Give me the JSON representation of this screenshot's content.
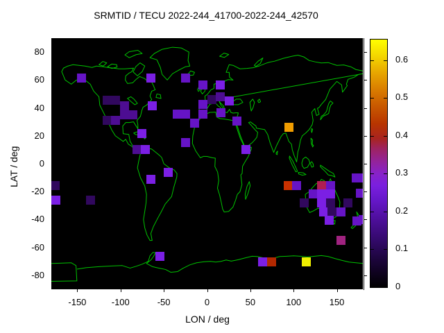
{
  "title": "SRMTID / TECU 2022-244_41700-2022-244_42570",
  "axes": {
    "x_label": "LON / deg",
    "y_label": "LAT / deg",
    "x_ticks": [
      "-150",
      "-100",
      "-50",
      "0",
      "50",
      "100",
      "150"
    ],
    "x_tick_values": [
      -150,
      -100,
      -50,
      0,
      50,
      100,
      150
    ],
    "y_ticks": [
      "80",
      "60",
      "40",
      "20",
      "0",
      "-20",
      "-40",
      "-60",
      "-80"
    ],
    "y_tick_values": [
      80,
      60,
      40,
      20,
      0,
      -20,
      -40,
      -60,
      -80
    ],
    "x_range": [
      -180,
      180
    ],
    "y_range": [
      -90,
      90
    ]
  },
  "colorbar": {
    "tick_labels": [
      "0",
      "0.1",
      "0.2",
      "0.3",
      "0.4",
      "0.5",
      "0.6"
    ],
    "tick_values": [
      0,
      0.1,
      0.2,
      0.3,
      0.4,
      0.5,
      0.6
    ],
    "max_value": 0.655,
    "gradient": [
      [
        0,
        "#000000"
      ],
      [
        6,
        "#0f0220"
      ],
      [
        12,
        "#1e0540"
      ],
      [
        20,
        "#360a70"
      ],
      [
        28,
        "#4f0f9e"
      ],
      [
        35,
        "#6517c8"
      ],
      [
        41,
        "#7a1fde"
      ],
      [
        46,
        "#8822c8"
      ],
      [
        51,
        "#942398"
      ],
      [
        56,
        "#9e2360"
      ],
      [
        60,
        "#a82420"
      ],
      [
        66,
        "#b83500"
      ],
      [
        73,
        "#c85800"
      ],
      [
        80,
        "#da7e00"
      ],
      [
        87,
        "#e8a900"
      ],
      [
        93,
        "#f3d400"
      ],
      [
        100,
        "#ffff00"
      ]
    ]
  },
  "palette": {
    "darkPurple": "#31085e",
    "purple": "#4d0d92",
    "violet": "#6614c6",
    "brightViolet": "#7b1fe4",
    "magenta": "#a02380",
    "crimson": "#b01e52",
    "red": "#c93100",
    "brick": "#b22800",
    "orange": "#f09d00",
    "yellow": "#efef00"
  },
  "colors": {
    "background": "#ffffff",
    "plot_background": "#000000",
    "coastline": "#00c400",
    "text": "#000000"
  },
  "chart_data": {
    "type": "heatmap",
    "title": "SRMTID / TECU 2022-244_41700-2022-244_42570",
    "xlabel": "LON / deg",
    "ylabel": "LAT / deg",
    "x_range": [
      -180,
      180
    ],
    "y_range": [
      -90,
      90
    ],
    "colorbar_range": [
      0,
      0.655
    ],
    "grid": false,
    "legend_position": "right-colorbar",
    "cell_size_px": 13,
    "cells": [
      [
        -145,
        61.5,
        0.19,
        "violet"
      ],
      [
        -65,
        61.5,
        0.24,
        "brightViolet"
      ],
      [
        -25,
        61.5,
        0.19,
        "violet"
      ],
      [
        -5,
        56.2,
        0.19,
        "violet"
      ],
      [
        15.5,
        56.2,
        0.24,
        "brightViolet"
      ],
      [
        -115.5,
        45.7,
        0.1,
        "darkPurple"
      ],
      [
        -105.5,
        45.7,
        0.1,
        "darkPurple"
      ],
      [
        -95.5,
        41.5,
        0.14,
        "purple"
      ],
      [
        -63.5,
        41.5,
        0.24,
        "brightViolet"
      ],
      [
        -95.5,
        35.3,
        0.14,
        "purple"
      ],
      [
        -85.5,
        35.3,
        0.14,
        "purple"
      ],
      [
        -115.5,
        31,
        0.1,
        "darkPurple"
      ],
      [
        -105.5,
        31,
        0.14,
        "purple"
      ],
      [
        -75.5,
        21.5,
        0.24,
        "brightViolet"
      ],
      [
        -81,
        10,
        0.14,
        "purple"
      ],
      [
        -71,
        10,
        0.24,
        "brightViolet"
      ],
      [
        -34.5,
        35.5,
        0.19,
        "violet"
      ],
      [
        -25,
        35.5,
        0.19,
        "violet"
      ],
      [
        -5,
        35.5,
        0.19,
        "violet"
      ],
      [
        -14.5,
        29,
        0.19,
        "violet"
      ],
      [
        -24.5,
        15,
        0.19,
        "violet"
      ],
      [
        -5,
        42.3,
        0.19,
        "violet"
      ],
      [
        5.5,
        45.8,
        0.1,
        "darkPurple"
      ],
      [
        15.5,
        47.8,
        0.14,
        "purple"
      ],
      [
        25.8,
        44.8,
        0.24,
        "brightViolet"
      ],
      [
        15.8,
        36.4,
        0.19,
        "violet"
      ],
      [
        34.6,
        30.7,
        0.19,
        "violet"
      ],
      [
        45,
        10,
        0.24,
        "brightViolet"
      ],
      [
        95,
        26,
        0.55,
        "orange"
      ],
      [
        -45.2,
        -6,
        0.24,
        "brightViolet"
      ],
      [
        -65.2,
        -11,
        0.24,
        "brightViolet"
      ],
      [
        93.5,
        -15.5,
        0.42,
        "red"
      ],
      [
        103.5,
        -15.5,
        0.19,
        "violet"
      ],
      [
        132.5,
        -15.5,
        0.34,
        "crimson"
      ],
      [
        142.5,
        -15.5,
        0.19,
        "violet"
      ],
      [
        122.5,
        -21.5,
        0.19,
        "violet"
      ],
      [
        132.5,
        -21.5,
        0.24,
        "brightViolet"
      ],
      [
        142.5,
        -21.5,
        0.24,
        "brightViolet"
      ],
      [
        172.5,
        -10,
        0.19,
        "violet"
      ],
      [
        180,
        -10,
        0.19,
        "violet"
      ],
      [
        177,
        -21,
        0.19,
        "violet"
      ],
      [
        -176,
        -15.5,
        0.1,
        "darkPurple"
      ],
      [
        -175,
        -26,
        0.24,
        "brightViolet"
      ],
      [
        -135,
        -26,
        0.1,
        "darkPurple"
      ],
      [
        112.5,
        -28,
        0.1,
        "darkPurple"
      ],
      [
        132.5,
        -28,
        0.24,
        "brightViolet"
      ],
      [
        142.5,
        -28,
        0.1,
        "darkPurple"
      ],
      [
        162.5,
        -28,
        0.1,
        "darkPurple"
      ],
      [
        134.5,
        -34.5,
        0.24,
        "brightViolet"
      ],
      [
        144.5,
        -34.5,
        0.1,
        "darkPurple"
      ],
      [
        154.5,
        -34.5,
        0.19,
        "violet"
      ],
      [
        141.5,
        -40.5,
        0.24,
        "brightViolet"
      ],
      [
        173.5,
        -41,
        0.19,
        "violet"
      ],
      [
        180,
        -40,
        0.19,
        "violet"
      ],
      [
        154.5,
        -55,
        0.31,
        "magenta"
      ],
      [
        -54.5,
        -66.4,
        0.24,
        "brightViolet"
      ],
      [
        64.5,
        -70.5,
        0.24,
        "brightViolet"
      ],
      [
        74.5,
        -70.5,
        0.4,
        "brick"
      ],
      [
        114.5,
        -70.5,
        0.63,
        "yellow"
      ]
    ]
  }
}
